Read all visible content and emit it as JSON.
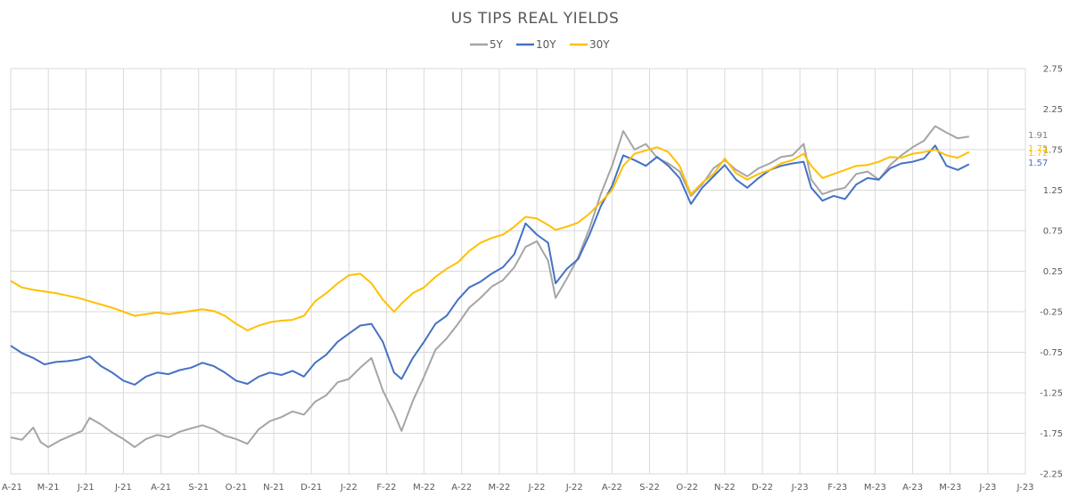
{
  "chart_data": {
    "type": "line",
    "title": "US TIPS REAL YIELDS",
    "legend_position": "top-center",
    "grid": true,
    "y_axis_side": "right",
    "ylim": [
      -2.25,
      2.75
    ],
    "y_ticks": [
      "2.75",
      "2.25",
      "1.75",
      "1.25",
      "0.75",
      "0.25",
      "-0.25",
      "-0.75",
      "-1.25",
      "-1.75",
      "-2.25"
    ],
    "x_ticks": [
      "A-21",
      "M-21",
      "J-21",
      "J-21",
      "A-21",
      "S-21",
      "O-21",
      "N-21",
      "D-21",
      "J-22",
      "F-22",
      "M-22",
      "A-22",
      "M-22",
      "J-22",
      "J-22",
      "A-22",
      "S-22",
      "O-22",
      "N-22",
      "D-22",
      "J-23",
      "F-23",
      "M-23",
      "A-23",
      "M-23",
      "J-23",
      "J-23"
    ],
    "series": [
      {
        "name": "5Y",
        "color": "#a5a5a5",
        "end_label": "1.91",
        "values": [
          [
            0,
            -1.8
          ],
          [
            0.3,
            -1.83
          ],
          [
            0.6,
            -1.68
          ],
          [
            0.8,
            -1.86
          ],
          [
            1.0,
            -1.92
          ],
          [
            1.3,
            -1.84
          ],
          [
            1.6,
            -1.78
          ],
          [
            1.9,
            -1.72
          ],
          [
            2.1,
            -1.56
          ],
          [
            2.4,
            -1.64
          ],
          [
            2.7,
            -1.74
          ],
          [
            3.0,
            -1.82
          ],
          [
            3.3,
            -1.92
          ],
          [
            3.6,
            -1.82
          ],
          [
            3.9,
            -1.77
          ],
          [
            4.2,
            -1.8
          ],
          [
            4.5,
            -1.73
          ],
          [
            4.8,
            -1.69
          ],
          [
            5.1,
            -1.65
          ],
          [
            5.4,
            -1.7
          ],
          [
            5.7,
            -1.78
          ],
          [
            6.0,
            -1.82
          ],
          [
            6.3,
            -1.88
          ],
          [
            6.6,
            -1.7
          ],
          [
            6.9,
            -1.6
          ],
          [
            7.2,
            -1.55
          ],
          [
            7.5,
            -1.48
          ],
          [
            7.8,
            -1.52
          ],
          [
            8.1,
            -1.36
          ],
          [
            8.4,
            -1.28
          ],
          [
            8.7,
            -1.12
          ],
          [
            9.0,
            -1.08
          ],
          [
            9.3,
            -0.94
          ],
          [
            9.6,
            -0.82
          ],
          [
            9.9,
            -1.22
          ],
          [
            10.2,
            -1.5
          ],
          [
            10.4,
            -1.72
          ],
          [
            10.7,
            -1.35
          ],
          [
            11.0,
            -1.05
          ],
          [
            11.3,
            -0.72
          ],
          [
            11.6,
            -0.58
          ],
          [
            11.9,
            -0.4
          ],
          [
            12.2,
            -0.2
          ],
          [
            12.5,
            -0.08
          ],
          [
            12.8,
            0.06
          ],
          [
            13.1,
            0.14
          ],
          [
            13.4,
            0.3
          ],
          [
            13.7,
            0.55
          ],
          [
            14.0,
            0.62
          ],
          [
            14.3,
            0.38
          ],
          [
            14.5,
            -0.08
          ],
          [
            14.8,
            0.16
          ],
          [
            15.1,
            0.42
          ],
          [
            15.4,
            0.78
          ],
          [
            15.7,
            1.2
          ],
          [
            16.0,
            1.55
          ],
          [
            16.3,
            1.98
          ],
          [
            16.6,
            1.75
          ],
          [
            16.9,
            1.82
          ],
          [
            17.2,
            1.65
          ],
          [
            17.5,
            1.58
          ],
          [
            17.8,
            1.48
          ],
          [
            18.1,
            1.18
          ],
          [
            18.4,
            1.32
          ],
          [
            18.7,
            1.52
          ],
          [
            19.0,
            1.62
          ],
          [
            19.3,
            1.5
          ],
          [
            19.6,
            1.42
          ],
          [
            19.9,
            1.52
          ],
          [
            20.2,
            1.58
          ],
          [
            20.5,
            1.66
          ],
          [
            20.8,
            1.68
          ],
          [
            21.1,
            1.82
          ],
          [
            21.3,
            1.38
          ],
          [
            21.6,
            1.2
          ],
          [
            21.9,
            1.25
          ],
          [
            22.2,
            1.28
          ],
          [
            22.5,
            1.45
          ],
          [
            22.8,
            1.48
          ],
          [
            23.1,
            1.38
          ],
          [
            23.4,
            1.56
          ],
          [
            23.7,
            1.68
          ],
          [
            24.0,
            1.78
          ],
          [
            24.3,
            1.86
          ],
          [
            24.6,
            2.04
          ],
          [
            24.9,
            1.96
          ],
          [
            25.2,
            1.89
          ],
          [
            25.5,
            1.91
          ]
        ]
      },
      {
        "name": "10Y",
        "color": "#4472c4",
        "end_label": "1.57",
        "values": [
          [
            0,
            -0.67
          ],
          [
            0.3,
            -0.76
          ],
          [
            0.6,
            -0.82
          ],
          [
            0.9,
            -0.9
          ],
          [
            1.2,
            -0.87
          ],
          [
            1.5,
            -0.86
          ],
          [
            1.8,
            -0.84
          ],
          [
            2.1,
            -0.8
          ],
          [
            2.4,
            -0.92
          ],
          [
            2.7,
            -1.0
          ],
          [
            3.0,
            -1.1
          ],
          [
            3.3,
            -1.15
          ],
          [
            3.6,
            -1.05
          ],
          [
            3.9,
            -1.0
          ],
          [
            4.2,
            -1.02
          ],
          [
            4.5,
            -0.97
          ],
          [
            4.8,
            -0.94
          ],
          [
            5.1,
            -0.88
          ],
          [
            5.4,
            -0.92
          ],
          [
            5.7,
            -1.0
          ],
          [
            6.0,
            -1.1
          ],
          [
            6.3,
            -1.14
          ],
          [
            6.6,
            -1.05
          ],
          [
            6.9,
            -1.0
          ],
          [
            7.2,
            -1.03
          ],
          [
            7.5,
            -0.98
          ],
          [
            7.8,
            -1.05
          ],
          [
            8.1,
            -0.88
          ],
          [
            8.4,
            -0.78
          ],
          [
            8.7,
            -0.62
          ],
          [
            9.0,
            -0.52
          ],
          [
            9.3,
            -0.42
          ],
          [
            9.6,
            -0.4
          ],
          [
            9.9,
            -0.62
          ],
          [
            10.2,
            -1.0
          ],
          [
            10.4,
            -1.08
          ],
          [
            10.7,
            -0.82
          ],
          [
            11.0,
            -0.62
          ],
          [
            11.3,
            -0.4
          ],
          [
            11.6,
            -0.3
          ],
          [
            11.9,
            -0.1
          ],
          [
            12.2,
            0.05
          ],
          [
            12.5,
            0.12
          ],
          [
            12.8,
            0.22
          ],
          [
            13.1,
            0.3
          ],
          [
            13.4,
            0.46
          ],
          [
            13.7,
            0.84
          ],
          [
            14.0,
            0.7
          ],
          [
            14.3,
            0.6
          ],
          [
            14.5,
            0.1
          ],
          [
            14.8,
            0.28
          ],
          [
            15.1,
            0.4
          ],
          [
            15.4,
            0.7
          ],
          [
            15.7,
            1.05
          ],
          [
            16.0,
            1.3
          ],
          [
            16.3,
            1.68
          ],
          [
            16.6,
            1.62
          ],
          [
            16.9,
            1.55
          ],
          [
            17.2,
            1.66
          ],
          [
            17.5,
            1.55
          ],
          [
            17.8,
            1.4
          ],
          [
            18.1,
            1.08
          ],
          [
            18.4,
            1.28
          ],
          [
            18.7,
            1.42
          ],
          [
            19.0,
            1.56
          ],
          [
            19.3,
            1.38
          ],
          [
            19.6,
            1.28
          ],
          [
            19.9,
            1.4
          ],
          [
            20.2,
            1.5
          ],
          [
            20.5,
            1.55
          ],
          [
            20.8,
            1.58
          ],
          [
            21.1,
            1.6
          ],
          [
            21.3,
            1.28
          ],
          [
            21.6,
            1.12
          ],
          [
            21.9,
            1.18
          ],
          [
            22.2,
            1.14
          ],
          [
            22.5,
            1.32
          ],
          [
            22.8,
            1.4
          ],
          [
            23.1,
            1.38
          ],
          [
            23.4,
            1.52
          ],
          [
            23.7,
            1.58
          ],
          [
            24.0,
            1.6
          ],
          [
            24.3,
            1.64
          ],
          [
            24.6,
            1.8
          ],
          [
            24.9,
            1.55
          ],
          [
            25.2,
            1.5
          ],
          [
            25.5,
            1.57
          ]
        ]
      },
      {
        "name": "30Y",
        "color": "#ffc000",
        "end_label": "1.72",
        "values": [
          [
            0,
            0.13
          ],
          [
            0.3,
            0.05
          ],
          [
            0.6,
            0.02
          ],
          [
            0.9,
            0.0
          ],
          [
            1.2,
            -0.02
          ],
          [
            1.5,
            -0.05
          ],
          [
            1.8,
            -0.08
          ],
          [
            2.1,
            -0.12
          ],
          [
            2.4,
            -0.16
          ],
          [
            2.7,
            -0.2
          ],
          [
            3.0,
            -0.25
          ],
          [
            3.3,
            -0.3
          ],
          [
            3.6,
            -0.28
          ],
          [
            3.9,
            -0.26
          ],
          [
            4.2,
            -0.28
          ],
          [
            4.5,
            -0.26
          ],
          [
            4.8,
            -0.24
          ],
          [
            5.1,
            -0.22
          ],
          [
            5.4,
            -0.24
          ],
          [
            5.7,
            -0.3
          ],
          [
            6.0,
            -0.4
          ],
          [
            6.3,
            -0.48
          ],
          [
            6.6,
            -0.42
          ],
          [
            6.9,
            -0.38
          ],
          [
            7.2,
            -0.36
          ],
          [
            7.5,
            -0.35
          ],
          [
            7.8,
            -0.3
          ],
          [
            8.1,
            -0.12
          ],
          [
            8.4,
            -0.02
          ],
          [
            8.7,
            0.1
          ],
          [
            9.0,
            0.2
          ],
          [
            9.3,
            0.22
          ],
          [
            9.6,
            0.1
          ],
          [
            9.9,
            -0.1
          ],
          [
            10.2,
            -0.25
          ],
          [
            10.4,
            -0.15
          ],
          [
            10.7,
            -0.02
          ],
          [
            11.0,
            0.05
          ],
          [
            11.3,
            0.18
          ],
          [
            11.6,
            0.28
          ],
          [
            11.9,
            0.36
          ],
          [
            12.2,
            0.5
          ],
          [
            12.5,
            0.6
          ],
          [
            12.8,
            0.66
          ],
          [
            13.1,
            0.7
          ],
          [
            13.4,
            0.8
          ],
          [
            13.7,
            0.92
          ],
          [
            14.0,
            0.9
          ],
          [
            14.3,
            0.82
          ],
          [
            14.5,
            0.76
          ],
          [
            14.8,
            0.8
          ],
          [
            15.1,
            0.85
          ],
          [
            15.4,
            0.96
          ],
          [
            15.7,
            1.1
          ],
          [
            16.0,
            1.25
          ],
          [
            16.3,
            1.55
          ],
          [
            16.6,
            1.7
          ],
          [
            16.9,
            1.74
          ],
          [
            17.2,
            1.78
          ],
          [
            17.5,
            1.72
          ],
          [
            17.8,
            1.55
          ],
          [
            18.1,
            1.2
          ],
          [
            18.4,
            1.34
          ],
          [
            18.7,
            1.45
          ],
          [
            19.0,
            1.64
          ],
          [
            19.3,
            1.46
          ],
          [
            19.6,
            1.38
          ],
          [
            19.9,
            1.45
          ],
          [
            20.2,
            1.5
          ],
          [
            20.5,
            1.58
          ],
          [
            20.8,
            1.62
          ],
          [
            21.1,
            1.7
          ],
          [
            21.3,
            1.55
          ],
          [
            21.6,
            1.4
          ],
          [
            21.9,
            1.45
          ],
          [
            22.2,
            1.5
          ],
          [
            22.5,
            1.55
          ],
          [
            22.8,
            1.56
          ],
          [
            23.1,
            1.6
          ],
          [
            23.4,
            1.66
          ],
          [
            23.7,
            1.65
          ],
          [
            24.0,
            1.7
          ],
          [
            24.3,
            1.72
          ],
          [
            24.6,
            1.75
          ],
          [
            24.9,
            1.68
          ],
          [
            25.2,
            1.65
          ],
          [
            25.5,
            1.72
          ]
        ]
      }
    ],
    "end_annotations": [
      {
        "text": "1.91",
        "color": "#7f7f7f"
      },
      {
        "text": "1.75",
        "color": "#ffc000"
      },
      {
        "text": "1.72",
        "color": "#ffc000"
      },
      {
        "text": "1.57",
        "color": "#4472c4"
      }
    ]
  }
}
